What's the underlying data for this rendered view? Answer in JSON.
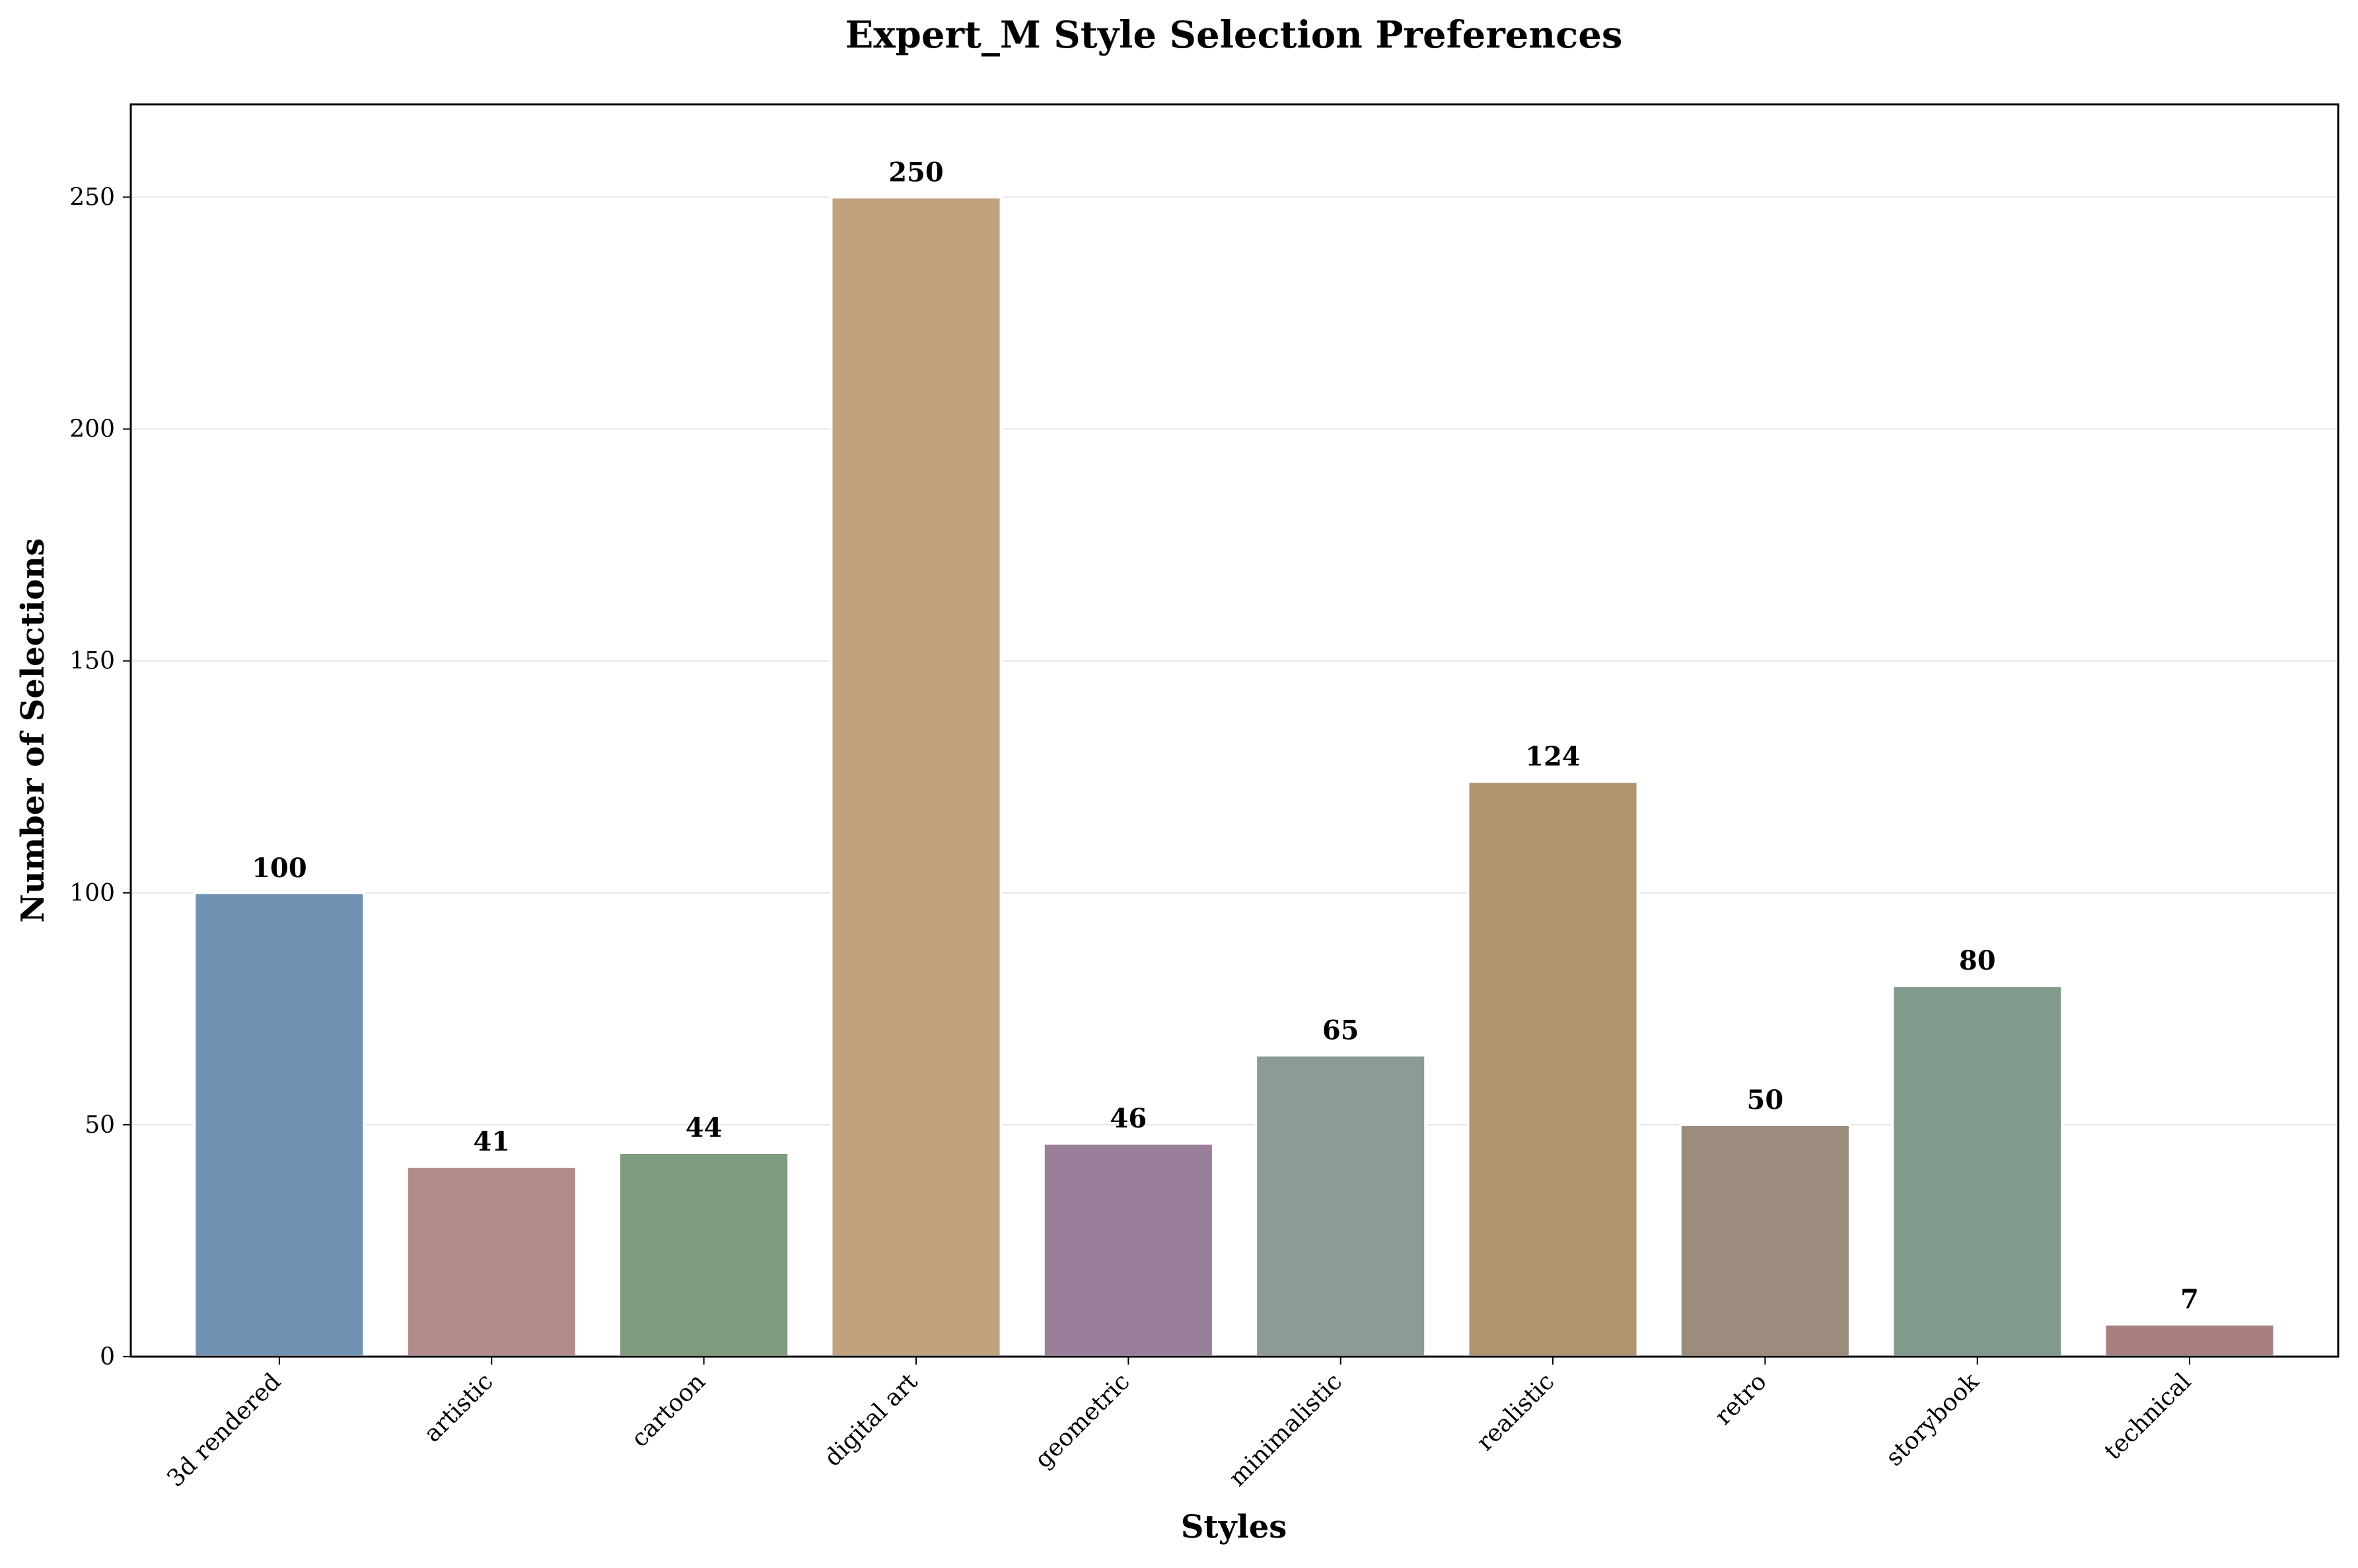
{
  "chart_data": {
    "type": "bar",
    "title": "Expert_M Style Selection Preferences",
    "xlabel": "Styles",
    "ylabel": "Number of Selections",
    "categories": [
      "3d rendered",
      "artistic",
      "cartoon",
      "digital art",
      "geometric",
      "minimalistic",
      "realistic",
      "retro",
      "storybook",
      "technical"
    ],
    "values": [
      100,
      41,
      44,
      250,
      46,
      65,
      124,
      50,
      80,
      7
    ],
    "value_labels": [
      "100",
      "41",
      "44",
      "250",
      "46",
      "65",
      "124",
      "50",
      "80",
      "7"
    ],
    "colors": [
      "#7092b3",
      "#b38b8a",
      "#7e9c7e",
      "#c0a27f",
      "#9a7f9b",
      "#8b9b98",
      "#b0946f",
      "#9c8c7e",
      "#829a8c",
      "#a87e7f"
    ],
    "ylim": [
      0,
      270
    ],
    "yticks": [
      0,
      50,
      100,
      150,
      200,
      250
    ],
    "ytick_labels": [
      "0",
      "50",
      "100",
      "150",
      "200",
      "250"
    ],
    "grid": "y-major",
    "legend": "none"
  }
}
